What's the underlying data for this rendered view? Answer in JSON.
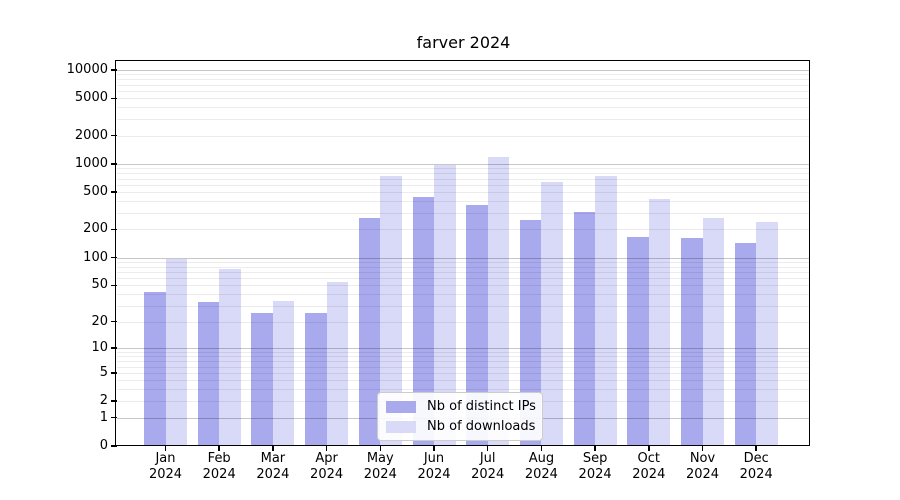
{
  "chart_data": {
    "type": "bar",
    "title": "farver 2024",
    "year": "2024",
    "months": [
      "Jan",
      "Feb",
      "Mar",
      "Apr",
      "May",
      "Jun",
      "Jul",
      "Aug",
      "Sep",
      "Oct",
      "Nov",
      "Dec"
    ],
    "series": [
      {
        "name": "Nb of distinct IPs",
        "color": "#a9a9ee",
        "values": [
          42,
          33,
          25,
          25,
          265,
          440,
          365,
          250,
          310,
          165,
          163,
          145
        ]
      },
      {
        "name": "Nb of downloads",
        "color": "#d9d9f8",
        "values": [
          97,
          75,
          34,
          55,
          750,
          980,
          1200,
          640,
          745,
          420,
          265,
          240
        ]
      }
    ],
    "yscale": "log10(1+value)",
    "yticks": [
      0,
      1,
      2,
      5,
      10,
      20,
      50,
      100,
      200,
      500,
      1000,
      2000,
      5000,
      10000
    ],
    "ylim": [
      0,
      12000
    ],
    "xlabel": "",
    "ylabel": "",
    "grid": "horizontal major+minor",
    "legend_position": "bottom-center-inside",
    "background": "#ffffff",
    "spine_color": "#000000"
  }
}
